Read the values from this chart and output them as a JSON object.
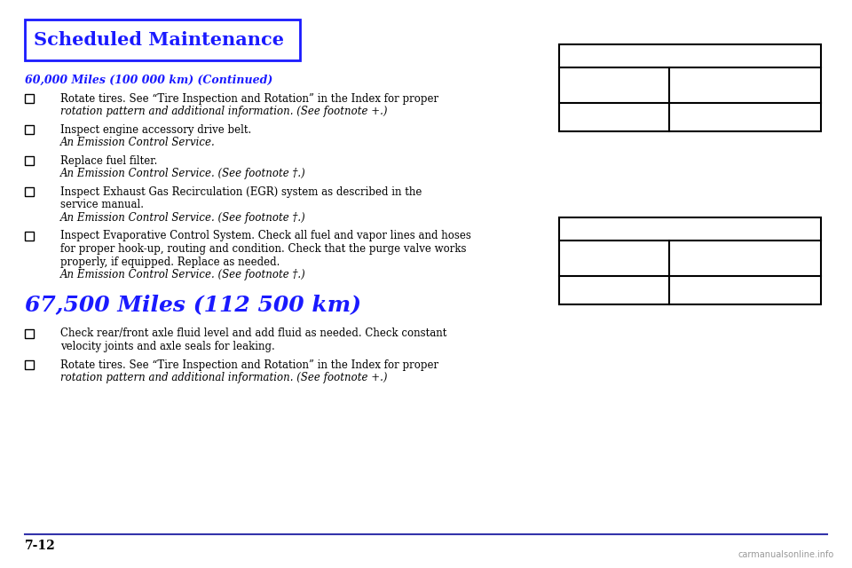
{
  "bg_color": "#ffffff",
  "header_title": "Scheduled Maintenance",
  "header_color": "#1a1aff",
  "header_border_color": "#1a1aff",
  "page_number": "7-12",
  "section1_title": "60,000 Miles (100 000 km) (Continued)",
  "section1_items": [
    [
      "Rotate tires. See “Tire Inspection and Rotation” in the Index for proper",
      "rotation pattern and additional information. (See footnote +.)",
      ""
    ],
    [
      "Inspect engine accessory drive belt.",
      "An Emission Control Service.",
      ""
    ],
    [
      "Replace fuel filter.",
      "An Emission Control Service. (See footnote †.)",
      ""
    ],
    [
      "Inspect Exhaust Gas Recirculation (EGR) system as described in the",
      "service manual.",
      "An Emission Control Service. (See footnote †.)"
    ],
    [
      "Inspect Evaporative Control System. Check all fuel and vapor lines and hoses",
      "for proper hook-up, routing and condition. Check that the purge valve works",
      "properly, if equipped. Replace as needed.",
      "An Emission Control Service. (See footnote †.)"
    ]
  ],
  "section1_item_italic_lines": [
    [
      false,
      true,
      false
    ],
    [
      false,
      true,
      false
    ],
    [
      false,
      true,
      false
    ],
    [
      false,
      false,
      true
    ],
    [
      false,
      false,
      false,
      true
    ]
  ],
  "section2_title": "67,500 Miles (112 500 km)",
  "section2_items": [
    [
      "Check rear/front axle fluid level and add fluid as needed. Check constant",
      "velocity joints and axle seals for leaking."
    ],
    [
      "Rotate tires. See “Tire Inspection and Rotation” in the Index for proper",
      "rotation pattern and additional information. (See footnote +.)"
    ]
  ],
  "section2_item_italic_lines": [
    [
      false,
      false
    ],
    [
      false,
      true
    ]
  ],
  "watermark": "carmanualsonline.info",
  "text_color": "#000000",
  "blue_color": "#1a1aff",
  "line_color": "#3333aa"
}
